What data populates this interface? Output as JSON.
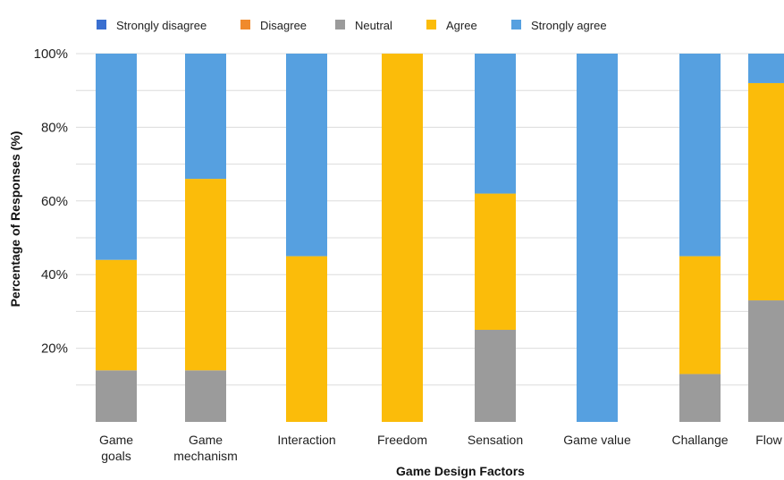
{
  "chart_data": {
    "type": "bar",
    "stacked": true,
    "percent": true,
    "title": "",
    "xlabel": "Game Design Factors",
    "ylabel": "Percentage of Responses (%)",
    "ylim": [
      0,
      100
    ],
    "yticks": [
      "20%",
      "40%",
      "60%",
      "80%",
      "100%"
    ],
    "grid": true,
    "legend_position": "top",
    "categories": [
      [
        "Game",
        "goals"
      ],
      [
        "Game",
        "mechanism"
      ],
      [
        "Interaction"
      ],
      [
        "Freedom"
      ],
      [
        "Sensation"
      ],
      [
        "Game value"
      ],
      [
        "Challange"
      ],
      [
        "Flow"
      ]
    ],
    "series": [
      {
        "name": "Strongly disagree",
        "color": "#3a6fd0",
        "values": [
          0,
          0,
          0,
          0,
          0,
          0,
          0,
          0
        ]
      },
      {
        "name": "Disagree",
        "color": "#f08a2c",
        "values": [
          0,
          0,
          0,
          0,
          0,
          0,
          0,
          0
        ]
      },
      {
        "name": "Neutral",
        "color": "#9b9b9b",
        "values": [
          14,
          14,
          0,
          0,
          25,
          0,
          13,
          33
        ]
      },
      {
        "name": "Agree",
        "color": "#fbbc0a",
        "values": [
          30,
          52,
          45,
          100,
          37,
          0,
          32,
          59
        ]
      },
      {
        "name": "Strongly agree",
        "color": "#56a0e0",
        "values": [
          56,
          34,
          55,
          0,
          38,
          100,
          55,
          8
        ]
      }
    ]
  }
}
